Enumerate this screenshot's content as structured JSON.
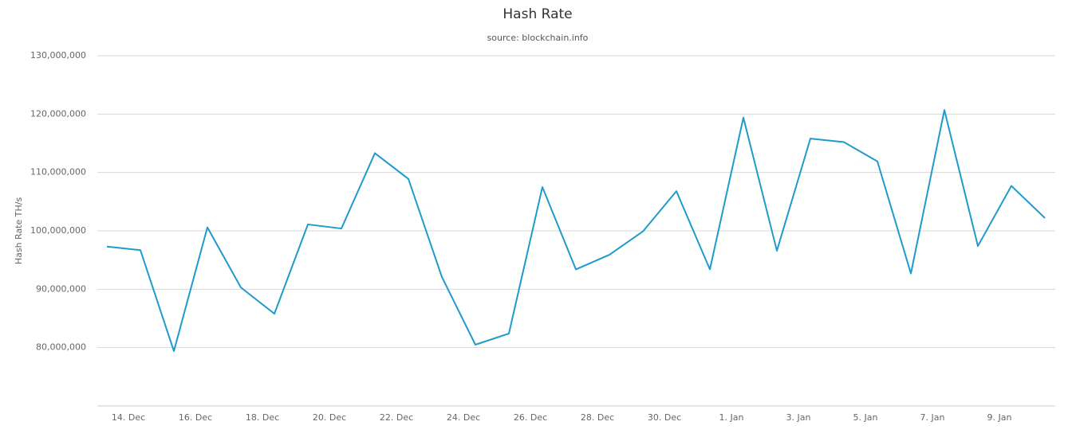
{
  "chart_data": {
    "type": "line",
    "title": "Hash Rate",
    "subtitle": "source: blockchain.info",
    "y_label": "Hash Rate TH/s",
    "categories": [
      null,
      "14. Dec",
      null,
      "16. Dec",
      null,
      "18. Dec",
      null,
      "20. Dec",
      null,
      "22. Dec",
      null,
      "24. Dec",
      null,
      "26. Dec",
      null,
      "28. Dec",
      null,
      "30. Dec",
      null,
      "1. Jan",
      null,
      "3. Jan",
      null,
      "5. Jan",
      null,
      "7. Jan",
      null,
      "9. Jan",
      null
    ],
    "values": [
      97300000,
      96700000,
      79400000,
      100600000,
      90300000,
      85800000,
      101100000,
      100400000,
      113300000,
      108900000,
      92100000,
      80500000,
      82400000,
      107500000,
      93400000,
      95900000,
      99900000,
      106800000,
      93400000,
      119400000,
      96600000,
      115800000,
      115200000,
      111900000,
      92700000,
      120700000,
      97400000,
      107700000,
      102200000
    ],
    "color": "#1f9bcb",
    "ylim": [
      70000000,
      130000000
    ],
    "yticks": [
      {
        "value": 80000000,
        "label": "80,000,000"
      },
      {
        "value": 90000000,
        "label": "90,000,000"
      },
      {
        "value": 100000000,
        "label": "100,000,000"
      },
      {
        "value": 110000000,
        "label": "110,000,000"
      },
      {
        "value": 120000000,
        "label": "120,000,000"
      },
      {
        "value": 130000000,
        "label": "130,000,000"
      }
    ],
    "grid": true
  }
}
